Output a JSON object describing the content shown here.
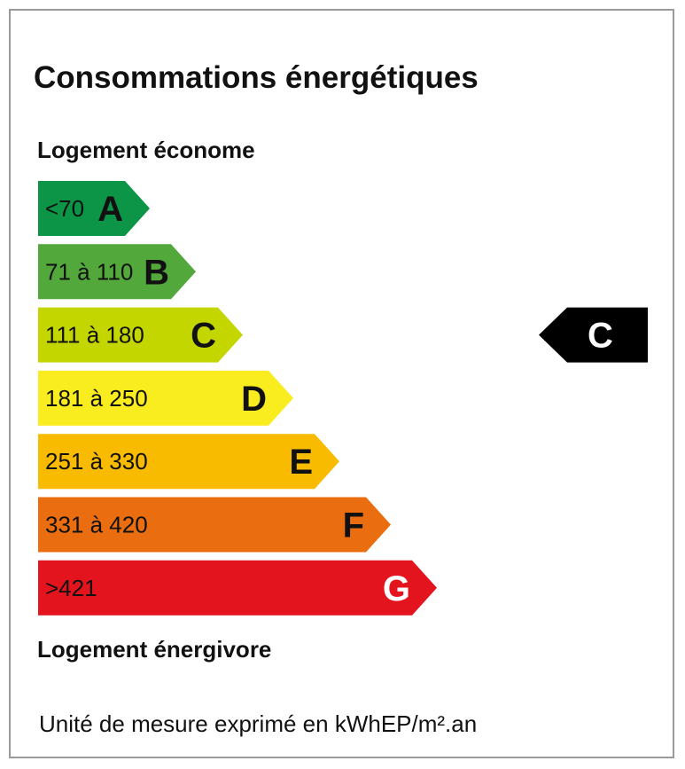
{
  "title": "Consommations énergétiques",
  "labels": {
    "top": "Logement économe",
    "bottom": "Logement énergivore"
  },
  "footer": "Unité de mesure exprimé en kWhEP/m².an",
  "chart_data": {
    "type": "bar",
    "title": "Consommations énergétiques",
    "categories": [
      "A",
      "B",
      "C",
      "D",
      "E",
      "F",
      "G"
    ],
    "ranges": [
      "<70",
      "71 à 110",
      "111 à 180",
      "181 à 250",
      "251 à 330",
      "331 à 420",
      ">421"
    ],
    "colors": [
      "#0c9447",
      "#52a83b",
      "#c4d600",
      "#f9ec1f",
      "#f8bb00",
      "#ea6e10",
      "#e3141d"
    ],
    "letter_colors": [
      "#111111",
      "#111111",
      "#111111",
      "#111111",
      "#111111",
      "#111111",
      "#ffffff"
    ],
    "current_class": "C",
    "indicator_color": "#000000",
    "indicator_text_color": "#ffffff"
  }
}
